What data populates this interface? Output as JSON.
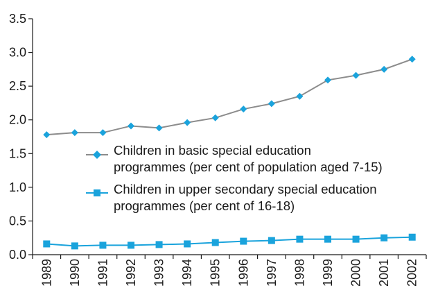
{
  "chart_data": {
    "type": "line",
    "title": "",
    "xlabel": "",
    "ylabel": "",
    "ylim": [
      0,
      3.5
    ],
    "yticks": [
      "0.0",
      "0.5",
      "1.0",
      "1.5",
      "2.0",
      "2.5",
      "3.0",
      "3.5"
    ],
    "categories": [
      "1989",
      "1990",
      "1991",
      "1992",
      "1993",
      "1994",
      "1995",
      "1996",
      "1997",
      "1998",
      "1999",
      "2000",
      "2001",
      "2002"
    ],
    "grid": false,
    "legend_position": "center",
    "series": [
      {
        "name_lines": [
          "Children in basic special education",
          "programmes (per cent of population aged 7-15)"
        ],
        "marker": "diamond",
        "line_color": "#8c8c8c",
        "marker_color": "#1aa3dc",
        "values": [
          1.78,
          1.81,
          1.81,
          1.91,
          1.88,
          1.96,
          2.03,
          2.16,
          2.24,
          2.35,
          2.59,
          2.66,
          2.75,
          2.9
        ]
      },
      {
        "name_lines": [
          "Children in upper secondary special education",
          "programmes (per cent of 16-18)"
        ],
        "marker": "square",
        "line_color": "#1aa3dc",
        "marker_color": "#1aa3dc",
        "values": [
          0.16,
          0.13,
          0.14,
          0.14,
          0.15,
          0.16,
          0.18,
          0.2,
          0.21,
          0.23,
          0.23,
          0.23,
          0.25,
          0.26
        ]
      }
    ]
  }
}
